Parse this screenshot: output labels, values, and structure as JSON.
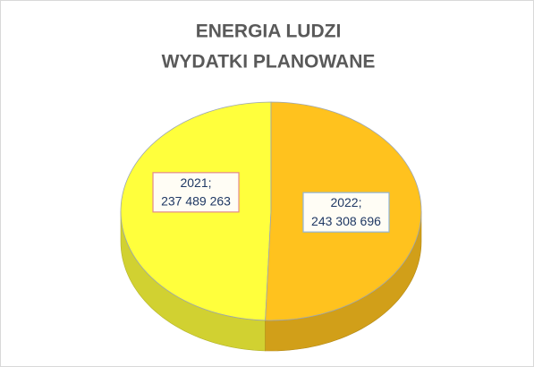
{
  "chart_data": {
    "type": "pie",
    "title": [
      "ENERGIA LUDZI",
      "WYDATKI PLANOWANE"
    ],
    "categories": [
      "2021",
      "2022"
    ],
    "values": [
      237489263,
      243308696
    ],
    "value_labels": [
      "237 489 263",
      "243 308 696"
    ],
    "label_separator": ";",
    "colors": [
      "#ffff3c",
      "#ffc21e"
    ],
    "direction": "counterclockwise",
    "three_d": true
  }
}
